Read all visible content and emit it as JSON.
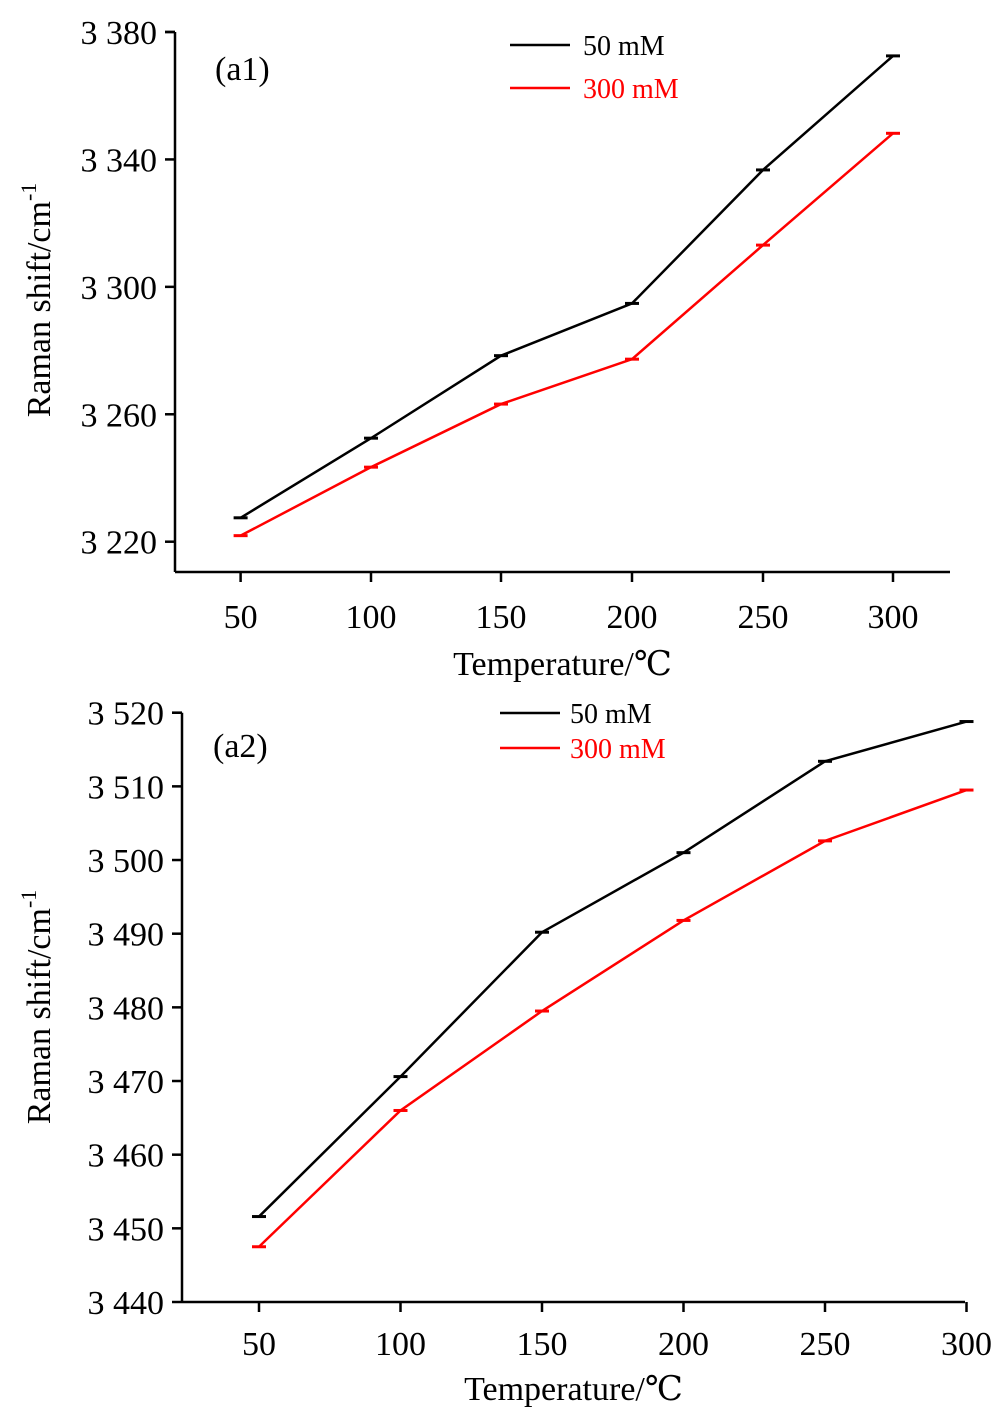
{
  "chart_data": [
    {
      "type": "line",
      "panel_label": "(a1)",
      "title": "",
      "xlabel": "Temperature/℃",
      "ylabel": "Raman shift/cm",
      "ylabel_superscript": "-1",
      "x": [
        50,
        100,
        150,
        200,
        250,
        300
      ],
      "x_tick_labels": [
        "50",
        "100",
        "150",
        "200",
        "250",
        "300"
      ],
      "xlim": [
        25,
        325
      ],
      "y_ticks": [
        3220,
        3260,
        3300,
        3340,
        3380
      ],
      "y_tick_labels": [
        "3 220",
        "3 260",
        "3 300",
        "3 340",
        "3 380"
      ],
      "ylim": [
        3210.6,
        3380
      ],
      "grid": false,
      "legend_position": "top-center",
      "series": [
        {
          "name": "50  mM",
          "color": "#000000",
          "values": [
            3227.5,
            3252.5,
            3278.4,
            3294.8,
            3336.7,
            3372.5
          ]
        },
        {
          "name": "300  mM",
          "color": "#ff0000",
          "values": [
            3221.9,
            3243.4,
            3263.2,
            3277.3,
            3313.1,
            3348.2
          ]
        }
      ]
    },
    {
      "type": "line",
      "panel_label": "(a2)",
      "title": "",
      "xlabel": "Temperature/℃",
      "ylabel": "Raman shift/cm",
      "ylabel_superscript": "-1",
      "x": [
        50,
        100,
        150,
        200,
        250,
        300
      ],
      "x_tick_labels": [
        "50",
        "100",
        "150",
        "200",
        "250",
        "300"
      ],
      "xlim": [
        25,
        300
      ],
      "y_ticks": [
        3440,
        3450,
        3460,
        3470,
        3480,
        3490,
        3500,
        3510,
        3520
      ],
      "y_tick_labels": [
        "3 440",
        "3 450",
        "3 460",
        "3 470",
        "3 480",
        "3 490",
        "3 500",
        "3 510",
        "3 520"
      ],
      "ylim": [
        3440,
        3520
      ],
      "grid": false,
      "legend_position": "top-center",
      "series": [
        {
          "name": "50 mM",
          "color": "#000000",
          "values": [
            3451.6,
            3470.6,
            3490.2,
            3501.0,
            3513.4,
            3518.8
          ]
        },
        {
          "name": "300  mM",
          "color": "#ff0000",
          "values": [
            3447.5,
            3466.0,
            3479.5,
            3491.8,
            3502.6,
            3509.5
          ]
        }
      ]
    }
  ]
}
